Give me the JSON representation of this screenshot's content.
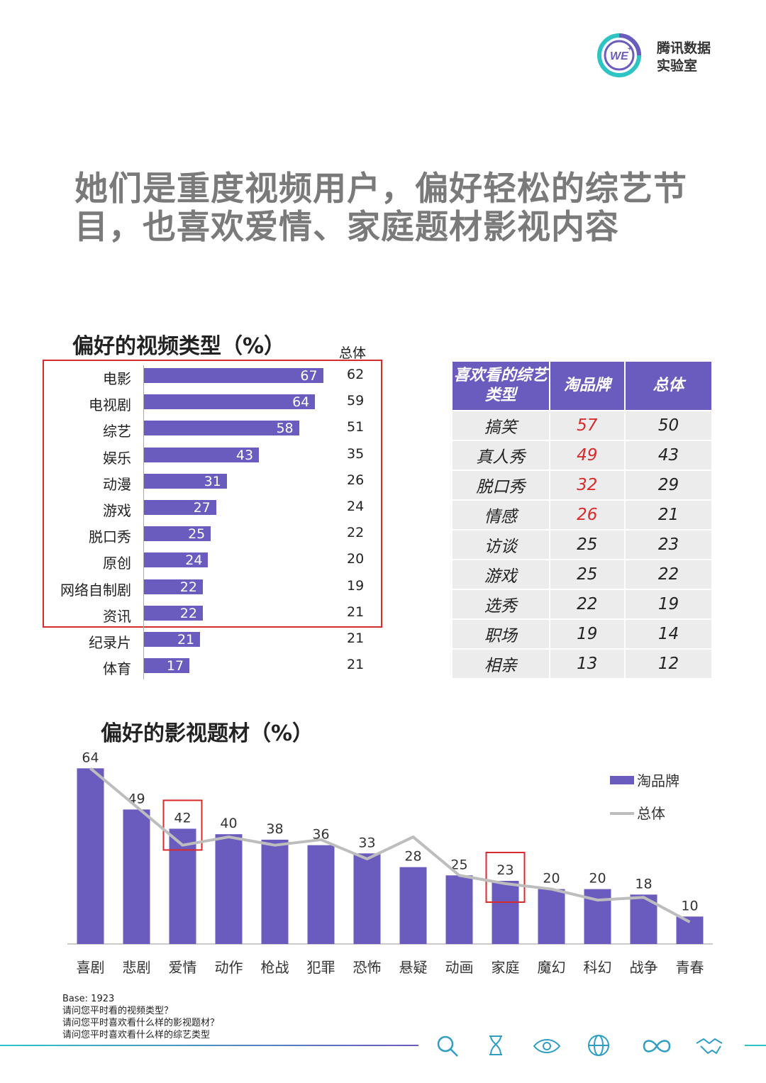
{
  "brand": {
    "name_line1": "腾讯数据",
    "name_line2": "实验室",
    "logo_mark": "WE",
    "logo_sup": "+"
  },
  "headline": "她们是重度视频用户，偏好轻松的综艺节目，也喜欢爱情、家庭题材影视内容",
  "video_types": {
    "title": "偏好的视频类型（%）",
    "total_header": "总体",
    "rows": [
      {
        "label": "电影",
        "value": "67",
        "total": "62"
      },
      {
        "label": "电视剧",
        "value": "64",
        "total": "59"
      },
      {
        "label": "综艺",
        "value": "58",
        "total": "51"
      },
      {
        "label": "娱乐",
        "value": "43",
        "total": "35"
      },
      {
        "label": "动漫",
        "value": "31",
        "total": "26"
      },
      {
        "label": "游戏",
        "value": "27",
        "total": "24"
      },
      {
        "label": "脱口秀",
        "value": "25",
        "total": "22"
      },
      {
        "label": "原创",
        "value": "24",
        "total": "20"
      },
      {
        "label": "网络自制剧",
        "value": "22",
        "total": "19"
      },
      {
        "label": "资讯",
        "value": "22",
        "total": "21"
      },
      {
        "label": "纪录片",
        "value": "21",
        "total": "21"
      },
      {
        "label": "体育",
        "value": "17",
        "total": "21"
      }
    ]
  },
  "variety_table": {
    "headers": [
      "喜欢看的综艺类型",
      "淘品牌",
      "总体"
    ],
    "rows": [
      [
        "搞笑",
        "57",
        "50"
      ],
      [
        "真人秀",
        "49",
        "43"
      ],
      [
        "脱口秀",
        "32",
        "29"
      ],
      [
        "情感",
        "26",
        "21"
      ],
      [
        "访谈",
        "25",
        "23"
      ],
      [
        "游戏",
        "25",
        "22"
      ],
      [
        "选秀",
        "22",
        "19"
      ],
      [
        "职场",
        "19",
        "14"
      ],
      [
        "相亲",
        "13",
        "12"
      ]
    ],
    "highlight_color": "#d92b2b"
  },
  "chart_data": [
    {
      "type": "bar",
      "title": "偏好的视频类型（%）",
      "orientation": "horizontal",
      "categories": [
        "电影",
        "电视剧",
        "综艺",
        "娱乐",
        "动漫",
        "游戏",
        "脱口秀",
        "原创",
        "网络自制剧",
        "资讯",
        "纪录片",
        "体育"
      ],
      "series": [
        {
          "name": "淘品牌",
          "values": [
            67,
            64,
            58,
            43,
            31,
            27,
            25,
            24,
            22,
            22,
            21,
            17
          ]
        },
        {
          "name": "总体",
          "values": [
            62,
            59,
            51,
            35,
            26,
            24,
            22,
            20,
            19,
            21,
            21,
            21
          ]
        }
      ],
      "xlim": [
        0,
        100
      ]
    },
    {
      "type": "bar",
      "title": "偏好的影视题材（%）",
      "categories": [
        "喜剧",
        "悲剧",
        "爱情",
        "动作",
        "枪战",
        "犯罪",
        "恐怖",
        "悬疑",
        "动画",
        "家庭",
        "魔幻",
        "科幻",
        "战争",
        "青春"
      ],
      "series": [
        {
          "name": "淘品牌",
          "type": "bar",
          "values": [
            64,
            49,
            42,
            40,
            38,
            36,
            33,
            28,
            25,
            23,
            20,
            20,
            18,
            10
          ]
        },
        {
          "name": "总体",
          "type": "line",
          "values": [
            64,
            50,
            36,
            39,
            36,
            38,
            31,
            39,
            25,
            22,
            20,
            16,
            17,
            8
          ]
        }
      ],
      "highlighted_categories": [
        "爱情",
        "家庭"
      ],
      "ylim": [
        0,
        70
      ],
      "legend": "top-right"
    }
  ],
  "footnote": {
    "base": "Base: 1923",
    "q1": "请问您平时看的视频类型？",
    "q2": "请问您平时喜欢看什么样的影视题材？",
    "q3": "请问您平时喜欢看什么样的综艺类型"
  },
  "colors": {
    "bar": "#6a5bbf",
    "line": "#bdbdbd",
    "highlight": "#d92b2b",
    "accent": "#2ec4c4"
  },
  "bottom_icons": [
    "search-icon",
    "hourglass-icon",
    "eye-icon",
    "globe-icon",
    "infinity-icon",
    "handshake-icon"
  ]
}
